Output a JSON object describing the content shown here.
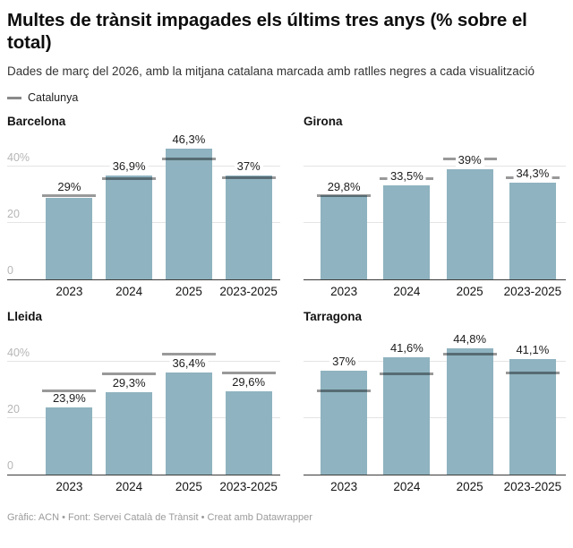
{
  "header": {
    "title": "Multes de trànsit impagades els últims tres anys (% sobre el total)",
    "subtitle": "Dades de març del 2026, amb la mitjana catalana marcada amb ratlles negres a cada visualització",
    "legend_label": "Catalunya"
  },
  "footer": {
    "text": "Gràfic: ACN • Font: Servei Català de Trànsit • Creat amb Datawrapper"
  },
  "colors": {
    "bar_fill": "#8FB3C0",
    "mean_marker": "rgba(0,0,0,0.40)",
    "grid_line": "#E4E4E4",
    "axis_line": "#3A3A3A",
    "y_tick_text": "#B6B6B6",
    "x_tick_text": "#141414",
    "value_text": "#1D1D1D",
    "legend_dash": "#8A8A8A",
    "footer_text": "#9B9B9B"
  },
  "chart_data": {
    "type": "bar",
    "unit": "%",
    "categories": [
      "2023",
      "2024",
      "2025",
      "2023-2025"
    ],
    "ylim": [
      0,
      52
    ],
    "yticks": [
      {
        "value": 0,
        "label": "0"
      },
      {
        "value": 20,
        "label": "20"
      },
      {
        "value": 40,
        "label": "40%"
      }
    ],
    "grid": true,
    "reference_series": {
      "name": "Catalunya",
      "note": "mitjana catalana marcada amb ratlla negra a cada barra (valors estimats de la posició de la línia)",
      "values": [
        29.9,
        35.9,
        42.9,
        36.1
      ]
    },
    "panels": [
      {
        "title": "Barcelona",
        "show_y_labels": true,
        "values": [
          29,
          36.9,
          46.3,
          37
        ],
        "labels": [
          "29%",
          "36,9%",
          "46,3%",
          "37%"
        ]
      },
      {
        "title": "Girona",
        "show_y_labels": false,
        "values": [
          29.8,
          33.5,
          39,
          34.3
        ],
        "labels": [
          "29,8%",
          "33,5%",
          "39%",
          "34,3%"
        ]
      },
      {
        "title": "Lleida",
        "show_y_labels": true,
        "values": [
          23.9,
          29.3,
          36.4,
          29.6
        ],
        "labels": [
          "23,9%",
          "29,3%",
          "36,4%",
          "29,6%"
        ]
      },
      {
        "title": "Tarragona",
        "show_y_labels": false,
        "values": [
          37,
          41.6,
          44.8,
          41.1
        ],
        "labels": [
          "37%",
          "41,6%",
          "44,8%",
          "41,1%"
        ]
      }
    ]
  }
}
